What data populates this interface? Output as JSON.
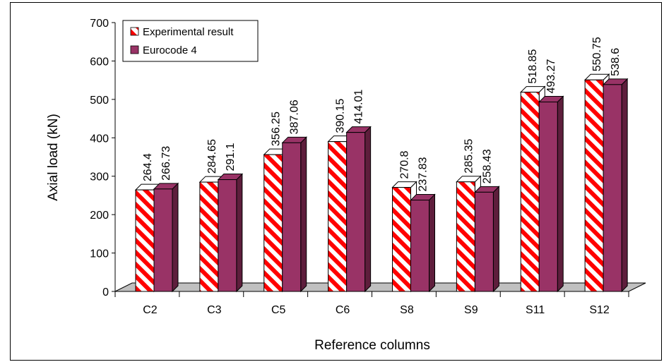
{
  "chart_data": {
    "type": "bar",
    "style": "3d-clustered-column",
    "categories": [
      "C2",
      "C3",
      "C5",
      "C6",
      "S8",
      "S9",
      "S11",
      "S12"
    ],
    "series": [
      {
        "name": "Experimental result",
        "values": [
          264.4,
          284.65,
          356.25,
          390.15,
          270.8,
          285.35,
          518.85,
          550.75
        ],
        "labels": [
          "264.4",
          "284.65",
          "356.25",
          "390.15",
          "270.8",
          "285.35",
          "518.85",
          "550.75"
        ],
        "pattern": "red-white-diagonal-stripes"
      },
      {
        "name": "Eurocode 4",
        "values": [
          266.73,
          291.1,
          387.06,
          414.01,
          237.83,
          258.43,
          493.27,
          538.6
        ],
        "labels": [
          "266.73",
          "291.1",
          "387.06",
          "414.01",
          "237.83",
          "258.43",
          "493.27",
          "538.6"
        ],
        "color": "#993366"
      }
    ],
    "title": "",
    "xlabel": "Reference columns",
    "ylabel": "Axial load (kN)",
    "ylim": [
      0,
      700
    ],
    "yticks": [
      "0",
      "100",
      "200",
      "300",
      "400",
      "500",
      "600",
      "700"
    ],
    "grid": false,
    "legend_position": "top-left",
    "colors": {
      "stripe": "#ff0000",
      "eurocode": "#993366",
      "eurocode_side": "#5e1e3c",
      "floor": "#c0c0c0"
    }
  }
}
